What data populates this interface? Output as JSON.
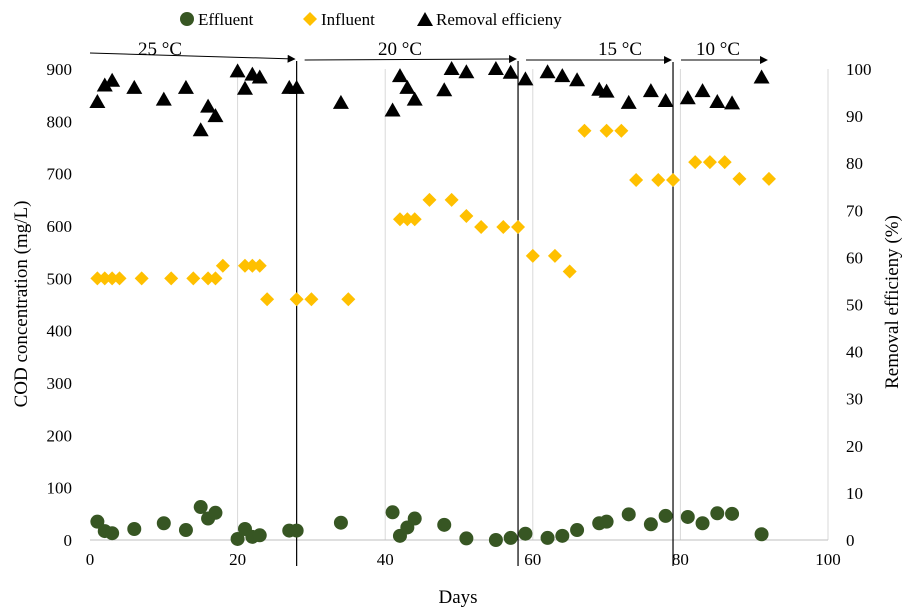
{
  "chart_data": {
    "type": "scatter",
    "xlabel": "Days",
    "ylabel": "COD concentration (mg/L)",
    "y2label": "Removal efficieny (%)",
    "xlim": [
      0,
      100
    ],
    "ylim": [
      0,
      900
    ],
    "y2lim": [
      0,
      100
    ],
    "x_ticks": [
      0,
      20,
      40,
      60,
      80,
      100
    ],
    "y_ticks": [
      0,
      100,
      200,
      300,
      400,
      500,
      600,
      700,
      800,
      900
    ],
    "y2_ticks": [
      0,
      10,
      20,
      30,
      40,
      50,
      60,
      70,
      80,
      90,
      100
    ],
    "grid": "vertical",
    "legend_position": "top",
    "series": [
      {
        "name": "Effluent",
        "axis": "left",
        "marker": "circle",
        "color": "#375623",
        "x": [
          1,
          2,
          3,
          6,
          10,
          13,
          15,
          16,
          17,
          20,
          21,
          22,
          23,
          27,
          28,
          34,
          41,
          42,
          43,
          44,
          48,
          51,
          55,
          57,
          59,
          62,
          64,
          66,
          69,
          70,
          73,
          76,
          78,
          81,
          83,
          85,
          87,
          91
        ],
        "y": [
          35,
          17,
          13,
          21,
          32,
          19,
          63,
          41,
          52,
          2,
          21,
          6,
          9,
          18,
          18,
          33,
          53,
          8,
          24,
          41,
          29,
          3,
          0,
          4,
          12,
          4,
          8,
          19,
          32,
          35,
          49,
          30,
          46,
          44,
          32,
          51,
          50,
          11
        ]
      },
      {
        "name": "Influent",
        "axis": "left",
        "marker": "diamond",
        "color": "#ffc000",
        "x": [
          1,
          2,
          3,
          4,
          7,
          11,
          14,
          16,
          17,
          18,
          21,
          22,
          23,
          24,
          28,
          30,
          35,
          42,
          43,
          44,
          46,
          49,
          51,
          53,
          56,
          58,
          60,
          63,
          65,
          67,
          70,
          72,
          74,
          77,
          79,
          82,
          84,
          86,
          88,
          92
        ],
        "y": [
          500,
          500,
          500,
          500,
          500,
          500,
          500,
          500,
          500,
          524,
          524,
          524,
          524,
          460,
          460,
          460,
          460,
          613,
          613,
          613,
          650,
          650,
          619,
          598,
          598,
          598,
          543,
          543,
          513,
          782,
          782,
          782,
          688,
          688,
          688,
          722,
          722,
          722,
          690,
          690
        ]
      },
      {
        "name": "Removal efficieny",
        "axis": "right",
        "marker": "triangle",
        "color": "#000000",
        "x": [
          1,
          2,
          3,
          6,
          10,
          13,
          15,
          16,
          17,
          20,
          21,
          22,
          23,
          27,
          28,
          34,
          41,
          42,
          43,
          44,
          48,
          49,
          51,
          55,
          57,
          59,
          62,
          64,
          66,
          69,
          70,
          73,
          76,
          78,
          81,
          83,
          85,
          87,
          91
        ],
        "y": [
          93,
          96.5,
          97.5,
          96,
          93.5,
          96,
          87,
          92,
          90,
          99.5,
          95.8,
          98.8,
          98.2,
          96,
          96,
          92.8,
          91.2,
          98.5,
          96,
          93.5,
          95.5,
          100,
          99.3,
          100,
          99.2,
          97.8,
          99.3,
          98.5,
          97.6,
          95.6,
          95.2,
          92.8,
          95.3,
          93.2,
          93.8,
          95.3,
          93,
          92.7,
          98.2
        ]
      }
    ],
    "phases": [
      {
        "label": "25 °C",
        "start_day": 0,
        "end_day": 28
      },
      {
        "label": "20 °C",
        "start_day": 28,
        "end_day": 58
      },
      {
        "label": "15 °C",
        "start_day": 58,
        "end_day": 79
      },
      {
        "label": "10 °C",
        "start_day": 79,
        "end_day": 92
      }
    ]
  }
}
